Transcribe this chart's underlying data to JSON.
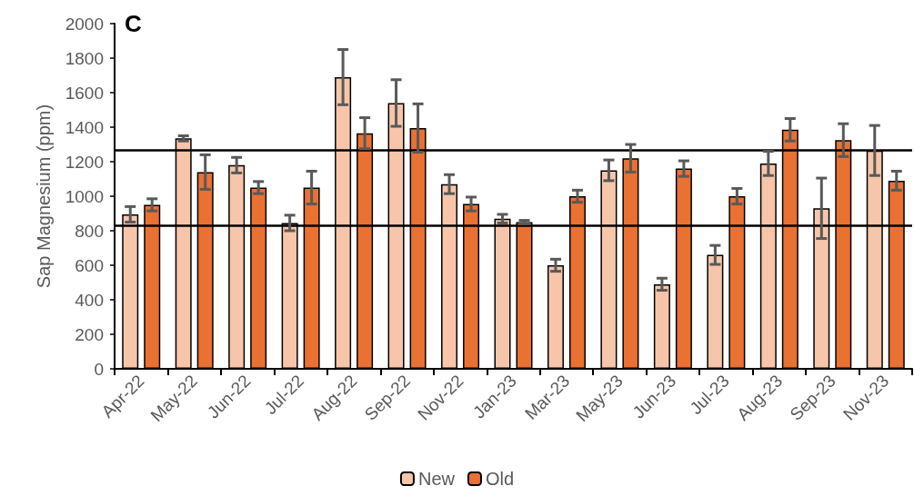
{
  "chart_data": {
    "type": "bar",
    "title": "C",
    "ylabel": "Sap Magnesium (ppm)",
    "categories": [
      "Apr-22",
      "May-22",
      "Jun-22",
      "Jul-22",
      "Aug-22",
      "Sep-22",
      "Nov-22",
      "Jan-23",
      "Mar-23",
      "May-23",
      "Jun-23",
      "Jul-23",
      "Aug-23",
      "Sep-23",
      "Nov-23"
    ],
    "series": [
      {
        "name": "New",
        "color": "#f7c6aa",
        "values": [
          895,
          1335,
          1180,
          845,
          1690,
          1540,
          1070,
          870,
          600,
          1150,
          490,
          660,
          1190,
          930,
          1265
        ],
        "errors": [
          45,
          15,
          45,
          45,
          160,
          135,
          55,
          25,
          35,
          60,
          35,
          55,
          70,
          175,
          145
        ]
      },
      {
        "name": "Old",
        "color": "#e97132",
        "values": [
          950,
          1140,
          1050,
          1050,
          1365,
          1395,
          955,
          850,
          1000,
          1220,
          1160,
          1000,
          1385,
          1325,
          1090
        ],
        "errors": [
          35,
          100,
          35,
          95,
          90,
          140,
          40,
          10,
          35,
          80,
          45,
          45,
          65,
          95,
          55
        ]
      }
    ],
    "ylim": [
      0,
      2000
    ],
    "yticks": [
      0,
      200,
      400,
      600,
      800,
      1000,
      1200,
      1400,
      1600,
      1800,
      2000
    ],
    "ref_lines": [
      {
        "axis": "y",
        "value": 1265,
        "color": "#000000"
      },
      {
        "axis": "y",
        "value": 830,
        "color": "#000000"
      }
    ],
    "grid": false,
    "legend": "bottom"
  }
}
